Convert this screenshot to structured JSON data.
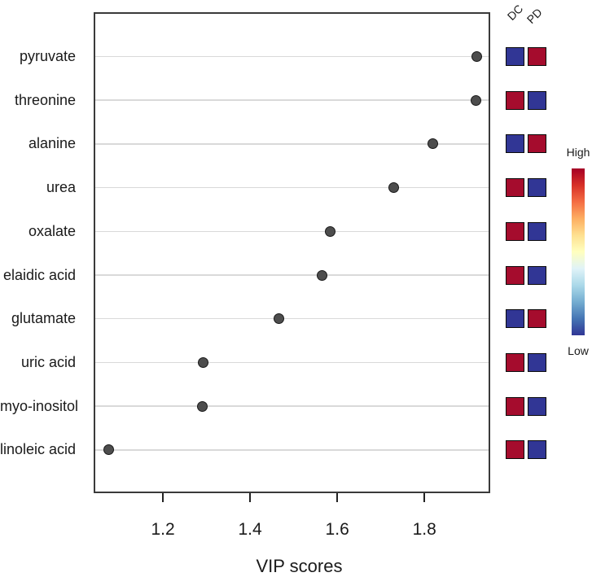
{
  "chart_data": {
    "type": "scatter",
    "title": "",
    "xlabel": "VIP scores",
    "x_ticks": [
      "1.2",
      "1.4",
      "1.6",
      "1.8"
    ],
    "x_tick_values": [
      1.2,
      1.4,
      1.6,
      1.8
    ],
    "xlim": [
      1.041,
      1.951
    ],
    "grid": true,
    "features": [
      "pyruvate",
      "threonine",
      "alanine",
      "urea",
      "oxalate",
      "elaidic acid",
      "glutamate",
      "uric acid",
      "myo-inositol",
      "linoleic acid"
    ],
    "vip_scores": [
      1.92,
      1.918,
      1.82,
      1.73,
      1.583,
      1.566,
      1.467,
      1.293,
      1.29,
      1.075
    ],
    "groups": [
      "DC",
      "PD"
    ],
    "group_levels": [
      {
        "feature": "pyruvate",
        "DC": "Low",
        "PD": "High"
      },
      {
        "feature": "threonine",
        "DC": "High",
        "PD": "Low"
      },
      {
        "feature": "alanine",
        "DC": "Low",
        "PD": "High"
      },
      {
        "feature": "urea",
        "DC": "High",
        "PD": "Low"
      },
      {
        "feature": "oxalate",
        "DC": "High",
        "PD": "Low"
      },
      {
        "feature": "elaidic acid",
        "DC": "High",
        "PD": "Low"
      },
      {
        "feature": "glutamate",
        "DC": "Low",
        "PD": "High"
      },
      {
        "feature": "uric acid",
        "DC": "High",
        "PD": "Low"
      },
      {
        "feature": "myo-inositol",
        "DC": "High",
        "PD": "Low"
      },
      {
        "feature": "linoleic acid",
        "DC": "High",
        "PD": "Low"
      }
    ],
    "colorbar": {
      "high_label": "High",
      "low_label": "Low"
    }
  },
  "colors": {
    "high": "#a50c2d",
    "low": "#313695",
    "dot_fill": "#4d4d4d",
    "dot_stroke": "#1a1a1a",
    "gridline": "#d9d9d9",
    "panel_border": "#3a3a3a",
    "colorbar_gradient": [
      "#a50026",
      "#d73027",
      "#f46d43",
      "#fdae61",
      "#fee090",
      "#ffffbf",
      "#e0f3f8",
      "#abd9e9",
      "#74add1",
      "#4575b4",
      "#313695"
    ]
  }
}
